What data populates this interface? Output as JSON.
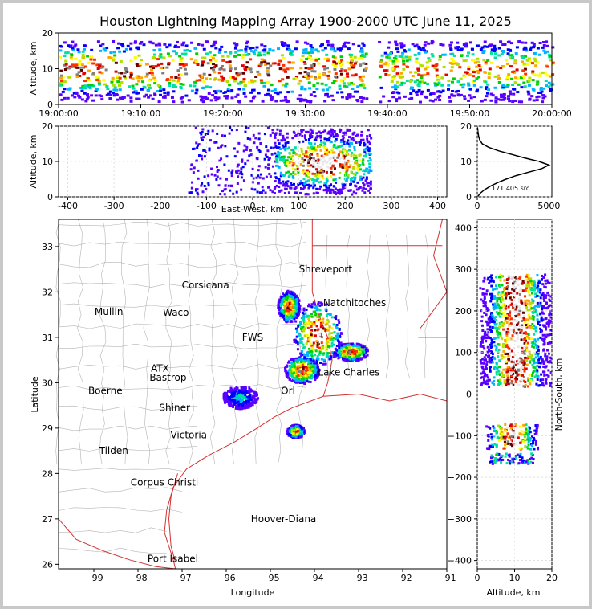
{
  "title": "Houston Lightning Mapping Array 1900-2000 UTC June 11, 2025",
  "colors": {
    "density": [
      "#5a00ff",
      "#0000ff",
      "#00b4ff",
      "#00e0a0",
      "#00d000",
      "#b0e000",
      "#ffff00",
      "#ffa500",
      "#ff3000",
      "#e00000",
      "#600000",
      "#808080",
      "#e8e8e8"
    ],
    "state_lines": "#d23232",
    "county_lines": "#b4b4b4",
    "grid": "#d8d8d8"
  },
  "chart_data": [
    {
      "id": "time_height",
      "type": "heatmap",
      "ylabel": "Altitude, km",
      "ylim": [
        0,
        20
      ],
      "yticks": [
        0,
        10,
        20
      ],
      "xticks": [
        "19:00:00",
        "19:10:00",
        "19:20:00",
        "19:30:00",
        "19:40:00",
        "19:50:00",
        "20:00:00"
      ],
      "x_range_min": [
        0,
        60
      ],
      "data_gap_min": [
        37.3,
        38.8
      ]
    },
    {
      "id": "ew_height",
      "type": "heatmap",
      "xlabel": "East-West, km",
      "ylabel": "Altitude, km",
      "xlim": [
        -420,
        420
      ],
      "ylim": [
        0,
        20
      ],
      "xticks": [
        -400,
        -300,
        -200,
        -100,
        0,
        100,
        200,
        300,
        400
      ],
      "yticks": [
        0,
        10,
        20
      ]
    },
    {
      "id": "altitude_histogram",
      "type": "line",
      "xlim": [
        0,
        5200
      ],
      "ylim": [
        0,
        20
      ],
      "xticks": [
        0,
        5000
      ],
      "yticks": [
        0,
        10,
        20
      ],
      "annotation": "171,405 src",
      "points": [
        [
          20,
          0
        ],
        [
          200,
          1
        ],
        [
          500,
          2
        ],
        [
          900,
          3
        ],
        [
          1400,
          4
        ],
        [
          2000,
          5
        ],
        [
          2700,
          6
        ],
        [
          3600,
          7
        ],
        [
          4500,
          8
        ],
        [
          5000,
          9
        ],
        [
          4300,
          10
        ],
        [
          3300,
          11
        ],
        [
          2400,
          12
        ],
        [
          1500,
          13
        ],
        [
          800,
          14
        ],
        [
          350,
          15
        ],
        [
          180,
          16
        ],
        [
          100,
          17
        ],
        [
          60,
          18
        ],
        [
          30,
          19
        ],
        [
          10,
          20
        ]
      ]
    },
    {
      "id": "plan_view",
      "type": "heatmap",
      "xlabel": "Longitude",
      "ylabel": "Latitude",
      "xlim": [
        -99.8,
        -91
      ],
      "ylim": [
        25.9,
        33.6
      ],
      "xticks": [
        -99,
        -98,
        -97,
        -96,
        -95,
        -94,
        -93,
        -92,
        -91
      ],
      "yticks": [
        26,
        27,
        28,
        29,
        30,
        31,
        32,
        33
      ],
      "cities": [
        {
          "label": "Shreveport",
          "lon": -93.75,
          "lat": 32.5,
          "color": "#000000"
        },
        {
          "label": "Corsicana",
          "lon": -96.47,
          "lat": 32.15,
          "color": "#000000"
        },
        {
          "label": "Natchitoches",
          "lon": -93.09,
          "lat": 31.76,
          "color": "#000000"
        },
        {
          "label": "Mullin",
          "lon": -98.66,
          "lat": 31.56,
          "color": "#f08030"
        },
        {
          "label": "Waco",
          "lon": -97.14,
          "lat": 31.55,
          "color": "#000000"
        },
        {
          "label": "FWS",
          "lon": -95.4,
          "lat": 31.0,
          "color": "#7a0000"
        },
        {
          "label": "ATX",
          "lon": -97.5,
          "lat": 30.32,
          "color": "#f08030"
        },
        {
          "label": "Bastrop",
          "lon": -97.32,
          "lat": 30.11,
          "color": "#000000"
        },
        {
          "label": "Lake Charles",
          "lon": -93.22,
          "lat": 30.23,
          "color": "#000000"
        },
        {
          "label": "Boerne",
          "lon": -98.74,
          "lat": 29.82,
          "color": "#000000"
        },
        {
          "label": "Orl",
          "lon": -94.6,
          "lat": 29.82,
          "color": "#e0a020"
        },
        {
          "label": "Shiner",
          "lon": -97.17,
          "lat": 29.45,
          "color": "#000000"
        },
        {
          "label": "Victoria",
          "lon": -96.85,
          "lat": 28.85,
          "color": "#000000"
        },
        {
          "label": "Tilden",
          "lon": -98.55,
          "lat": 28.5,
          "color": "#000000"
        },
        {
          "label": "Corpus Christi",
          "lon": -97.4,
          "lat": 27.8,
          "color": "#000000"
        },
        {
          "label": "Hoover-Diana",
          "lon": -94.7,
          "lat": 27.0,
          "color": "#0000ff"
        },
        {
          "label": "Port Isabel",
          "lon": -97.21,
          "lat": 26.12,
          "color": "#000000"
        }
      ]
    },
    {
      "id": "ns_height",
      "type": "heatmap",
      "xlabel": "Altitude, km",
      "ylabel": "North-South, km",
      "xlim": [
        0,
        20
      ],
      "ylim": [
        -420,
        420
      ],
      "xticks": [
        0,
        10,
        20
      ],
      "yticks": [
        -400,
        -300,
        -200,
        -100,
        0,
        100,
        200,
        300,
        400
      ]
    }
  ]
}
